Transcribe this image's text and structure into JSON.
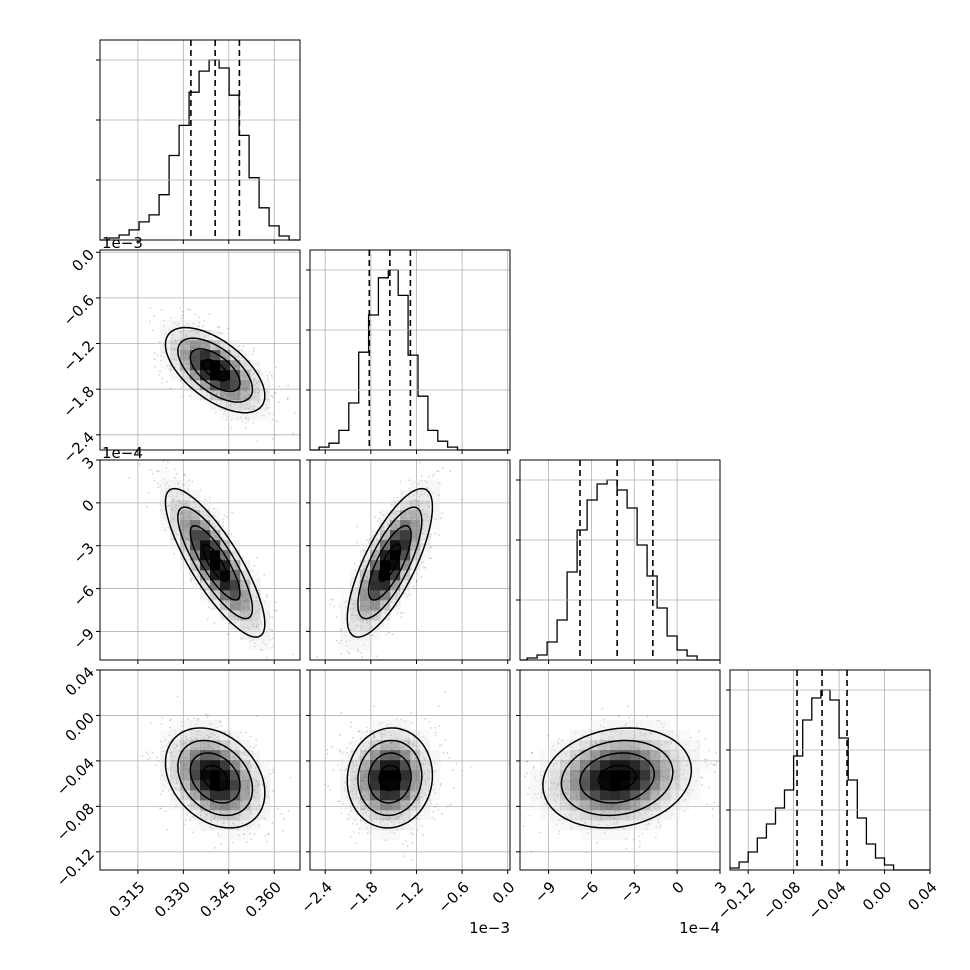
{
  "chart_data": {
    "type": "corner",
    "grid": true,
    "parameters": [
      {
        "range": [
          0.3025,
          0.3685
        ],
        "ticks": [
          0.315,
          0.33,
          0.345,
          0.36
        ],
        "tick_labels": [
          "0.315",
          "0.330",
          "0.345",
          "0.360"
        ],
        "offset_text": "",
        "quantiles": [
          0.3325,
          0.3405,
          0.3485
        ],
        "histogram": [
          {
            "x0": 0.3025,
            "x1": 0.3055,
            "count": 0
          },
          {
            "x0": 0.3055,
            "x1": 0.3088,
            "count": 2
          },
          {
            "x0": 0.3088,
            "x1": 0.3121,
            "count": 5
          },
          {
            "x0": 0.3121,
            "x1": 0.3154,
            "count": 10
          },
          {
            "x0": 0.3154,
            "x1": 0.3187,
            "count": 18
          },
          {
            "x0": 0.3187,
            "x1": 0.322,
            "count": 25
          },
          {
            "x0": 0.322,
            "x1": 0.3253,
            "count": 45
          },
          {
            "x0": 0.3253,
            "x1": 0.3286,
            "count": 84
          },
          {
            "x0": 0.3286,
            "x1": 0.3319,
            "count": 114
          },
          {
            "x0": 0.3319,
            "x1": 0.3352,
            "count": 147
          },
          {
            "x0": 0.3352,
            "x1": 0.3385,
            "count": 168
          },
          {
            "x0": 0.3385,
            "x1": 0.3418,
            "count": 179
          },
          {
            "x0": 0.3418,
            "x1": 0.3451,
            "count": 171
          },
          {
            "x0": 0.3451,
            "x1": 0.3484,
            "count": 144
          },
          {
            "x0": 0.3484,
            "x1": 0.3517,
            "count": 104
          },
          {
            "x0": 0.3517,
            "x1": 0.355,
            "count": 62
          },
          {
            "x0": 0.355,
            "x1": 0.3583,
            "count": 32
          },
          {
            "x0": 0.3583,
            "x1": 0.3616,
            "count": 14
          },
          {
            "x0": 0.3616,
            "x1": 0.3649,
            "count": 4
          },
          {
            "x0": 0.3649,
            "x1": 0.3685,
            "count": 0
          }
        ]
      },
      {
        "range": [
          -0.0026,
          3e-05
        ],
        "ticks": [
          -0.0024,
          -0.0018,
          -0.0012,
          -0.0006,
          0.0
        ],
        "tick_labels": [
          "−2.4",
          "−1.8",
          "−1.2",
          "−0.6",
          "0.0"
        ],
        "offset_text": "1e−3",
        "quantiles": [
          -0.00182,
          -0.00155,
          -0.00128
        ],
        "histogram": [
          {
            "x0": -0.0026,
            "x1": -0.00248,
            "count": 0
          },
          {
            "x0": -0.00248,
            "x1": -0.00235,
            "count": 3
          },
          {
            "x0": -0.00235,
            "x1": -0.00222,
            "count": 7
          },
          {
            "x0": -0.00222,
            "x1": -0.00209,
            "count": 20
          },
          {
            "x0": -0.00209,
            "x1": -0.00196,
            "count": 48
          },
          {
            "x0": -0.00196,
            "x1": -0.00183,
            "count": 100
          },
          {
            "x0": -0.00183,
            "x1": -0.0017,
            "count": 138
          },
          {
            "x0": -0.0017,
            "x1": -0.00157,
            "count": 176
          },
          {
            "x0": -0.00157,
            "x1": -0.00144,
            "count": 184
          },
          {
            "x0": -0.00144,
            "x1": -0.00131,
            "count": 158
          },
          {
            "x0": -0.00131,
            "x1": -0.00118,
            "count": 97
          },
          {
            "x0": -0.00118,
            "x1": -0.00105,
            "count": 55
          },
          {
            "x0": -0.00105,
            "x1": -0.00092,
            "count": 20
          },
          {
            "x0": -0.00092,
            "x1": -0.00079,
            "count": 9
          },
          {
            "x0": -0.00079,
            "x1": -0.00066,
            "count": 3
          },
          {
            "x0": -0.00066,
            "x1": 3e-05,
            "count": 0
          }
        ]
      },
      {
        "range": [
          -0.0011,
          0.0003
        ],
        "ticks": [
          -0.0009,
          -0.0006,
          -0.0003,
          0.0,
          0.0003
        ],
        "tick_labels": [
          "−9",
          "−6",
          "−3",
          "0",
          "3"
        ],
        "offset_text": "1e−4",
        "quantiles": [
          -0.00068,
          -0.00042,
          -0.00017
        ],
        "histogram": [
          {
            "x0": -0.0011,
            "x1": -0.00105,
            "count": 0
          },
          {
            "x0": -0.00105,
            "x1": -0.00098,
            "count": 2
          },
          {
            "x0": -0.00098,
            "x1": -0.00091,
            "count": 5
          },
          {
            "x0": -0.00091,
            "x1": -0.00084,
            "count": 18
          },
          {
            "x0": -0.00084,
            "x1": -0.00077,
            "count": 40
          },
          {
            "x0": -0.00077,
            "x1": -0.0007,
            "count": 88
          },
          {
            "x0": -0.0007,
            "x1": -0.00063,
            "count": 130
          },
          {
            "x0": -0.00063,
            "x1": -0.00056,
            "count": 160
          },
          {
            "x0": -0.00056,
            "x1": -0.00049,
            "count": 176
          },
          {
            "x0": -0.00049,
            "x1": -0.00042,
            "count": 180
          },
          {
            "x0": -0.00042,
            "x1": -0.00035,
            "count": 170
          },
          {
            "x0": -0.00035,
            "x1": -0.00028,
            "count": 152
          },
          {
            "x0": -0.00028,
            "x1": -0.00021,
            "count": 115
          },
          {
            "x0": -0.00021,
            "x1": -0.00014,
            "count": 84
          },
          {
            "x0": -0.00014,
            "x1": -7e-05,
            "count": 52
          },
          {
            "x0": -7e-05,
            "x1": 0.0,
            "count": 24
          },
          {
            "x0": 0.0,
            "x1": 7e-05,
            "count": 10
          },
          {
            "x0": 7e-05,
            "x1": 0.00014,
            "count": 4
          },
          {
            "x0": 0.00014,
            "x1": 0.0003,
            "count": 0
          }
        ]
      },
      {
        "range": [
          -0.136,
          0.04
        ],
        "ticks": [
          -0.12,
          -0.08,
          -0.04,
          0.0,
          0.04
        ],
        "tick_labels": [
          "−0.12",
          "−0.08",
          "−0.04",
          "0.00",
          "0.04"
        ],
        "offset_text": "",
        "quantiles": [
          -0.077,
          -0.055,
          -0.033
        ],
        "histogram": [
          {
            "x0": -0.136,
            "x1": -0.128,
            "count": 2
          },
          {
            "x0": -0.128,
            "x1": -0.12,
            "count": 8
          },
          {
            "x0": -0.12,
            "x1": -0.112,
            "count": 18
          },
          {
            "x0": -0.112,
            "x1": -0.104,
            "count": 32
          },
          {
            "x0": -0.104,
            "x1": -0.096,
            "count": 46
          },
          {
            "x0": -0.096,
            "x1": -0.088,
            "count": 62
          },
          {
            "x0": -0.088,
            "x1": -0.08,
            "count": 80
          },
          {
            "x0": -0.08,
            "x1": -0.072,
            "count": 114
          },
          {
            "x0": -0.072,
            "x1": -0.064,
            "count": 150
          },
          {
            "x0": -0.064,
            "x1": -0.056,
            "count": 172
          },
          {
            "x0": -0.056,
            "x1": -0.048,
            "count": 180
          },
          {
            "x0": -0.048,
            "x1": -0.04,
            "count": 170
          },
          {
            "x0": -0.04,
            "x1": -0.032,
            "count": 132
          },
          {
            "x0": -0.032,
            "x1": -0.024,
            "count": 90
          },
          {
            "x0": -0.024,
            "x1": -0.016,
            "count": 52
          },
          {
            "x0": -0.016,
            "x1": -0.008,
            "count": 26
          },
          {
            "x0": -0.008,
            "x1": 0.0,
            "count": 12
          },
          {
            "x0": 0.0,
            "x1": 0.008,
            "count": 5
          },
          {
            "x0": 0.008,
            "x1": 0.04,
            "count": 0
          }
        ]
      }
    ],
    "pairs": [
      {
        "row": 1,
        "col": 0,
        "mean": [
          0.3405,
          -0.00155
        ],
        "sd": [
          0.0082,
          0.00028
        ],
        "rho": -0.6
      },
      {
        "row": 2,
        "col": 0,
        "mean": [
          0.3405,
          -0.00042
        ],
        "sd": [
          0.0082,
          0.00026
        ],
        "rho": -0.82
      },
      {
        "row": 2,
        "col": 1,
        "mean": [
          -0.00155,
          -0.00042
        ],
        "sd": [
          0.00028,
          0.00026
        ],
        "rho": 0.75
      },
      {
        "row": 3,
        "col": 0,
        "mean": [
          0.3405,
          -0.055
        ],
        "sd": [
          0.0082,
          0.022
        ],
        "rho": -0.3
      },
      {
        "row": 3,
        "col": 1,
        "mean": [
          -0.00155,
          -0.055
        ],
        "sd": [
          0.00028,
          0.022
        ],
        "rho": 0.05
      },
      {
        "row": 3,
        "col": 2,
        "mean": [
          -0.00042,
          -0.055
        ],
        "sd": [
          0.00026,
          0.022
        ],
        "rho": 0.15
      }
    ],
    "contour_levels_sigma": [
      0.5,
      1.0,
      1.5,
      2.0
    ],
    "colors": {
      "line": "#000000",
      "grid": "#b0b0b0",
      "scatter": "#808080",
      "density_dark": "#000000",
      "background": "#ffffff"
    }
  }
}
